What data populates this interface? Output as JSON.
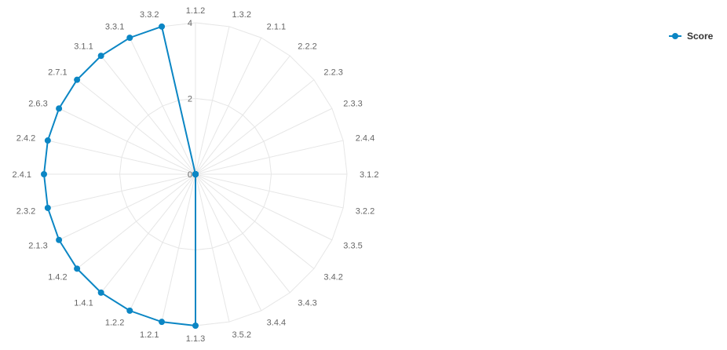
{
  "chart_data": {
    "type": "radar",
    "categories": [
      "1.1.2",
      "1.3.2",
      "2.1.1",
      "2.2.2",
      "2.2.3",
      "2.3.3",
      "2.4.4",
      "3.1.2",
      "3.2.2",
      "3.3.5",
      "3.4.2",
      "3.4.3",
      "3.4.4",
      "3.5.2",
      "1.1.3",
      "1.2.1",
      "1.2.2",
      "1.4.1",
      "1.4.2",
      "2.1.3",
      "2.3.2",
      "2.4.1",
      "2.4.2",
      "2.6.3",
      "2.7.1",
      "3.1.1",
      "3.3.1",
      "3.3.2"
    ],
    "series": [
      {
        "name": "Score",
        "color": "#0b86c4",
        "values": [
          0,
          0,
          0,
          0,
          0,
          0,
          0,
          0,
          0,
          0,
          0,
          0,
          0,
          0,
          4,
          4,
          4,
          4,
          4,
          4,
          4,
          4,
          4,
          4,
          4,
          4,
          4,
          4
        ]
      }
    ],
    "ylim": [
      0,
      4
    ],
    "yticks": [
      "0",
      "2",
      "4"
    ],
    "grid": true,
    "legend": "top-right"
  }
}
